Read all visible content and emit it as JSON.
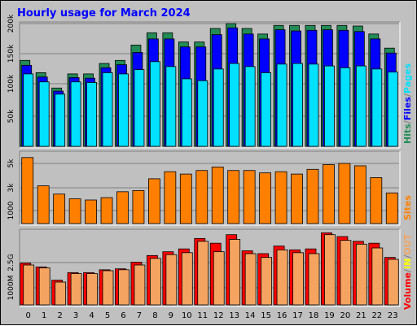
{
  "title": "Hourly usage for March 2024",
  "colors": {
    "background": "#c0c0c0",
    "plot_bg": "#c0c0c0",
    "hits": "#228b56",
    "files": "#0000ff",
    "pages": "#00e0ff",
    "sites": "#ff8000",
    "volume": "#ff0000",
    "in": "#ffff00",
    "out": "#f4a460",
    "title": "#0000ff"
  },
  "chart_data": [
    {
      "type": "bar",
      "title": "Hourly usage for March 2024",
      "categories": [
        "0",
        "1",
        "2",
        "3",
        "4",
        "5",
        "6",
        "7",
        "8",
        "9",
        "10",
        "11",
        "12",
        "13",
        "14",
        "15",
        "16",
        "17",
        "18",
        "19",
        "20",
        "21",
        "22",
        "23"
      ],
      "ylim": [
        0,
        200000
      ],
      "y_ticks": [
        "50k",
        "100k",
        "150k",
        "200k"
      ],
      "legend_vertical": [
        {
          "text": "Hits",
          "color": "#228b56"
        },
        {
          "text": "/",
          "color": "#808080"
        },
        {
          "text": "Files",
          "color": "#0000ff"
        },
        {
          "text": "/",
          "color": "#808080"
        },
        {
          "text": "Pages",
          "color": "#00e0ff"
        }
      ],
      "series": [
        {
          "name": "Hits",
          "values": [
            140000,
            120000,
            95000,
            118000,
            118000,
            135000,
            140000,
            165000,
            185000,
            185000,
            170000,
            170000,
            192000,
            200000,
            192000,
            183000,
            197000,
            197000,
            197000,
            197000,
            197000,
            196000,
            183000,
            160000
          ]
        },
        {
          "name": "Files",
          "values": [
            132000,
            113000,
            90000,
            112000,
            111000,
            128000,
            133000,
            153000,
            175000,
            175000,
            162000,
            162000,
            182000,
            193000,
            183000,
            175000,
            190000,
            188000,
            189000,
            190000,
            189000,
            187000,
            175000,
            152000
          ]
        },
        {
          "name": "Pages",
          "values": [
            118000,
            105000,
            85000,
            105000,
            104000,
            120000,
            118000,
            125000,
            138000,
            130000,
            110000,
            107000,
            126000,
            135000,
            130000,
            120000,
            134000,
            135000,
            134000,
            131000,
            128000,
            131000,
            126000,
            121000
          ]
        }
      ]
    },
    {
      "type": "bar",
      "categories": [
        "0",
        "1",
        "2",
        "3",
        "4",
        "5",
        "6",
        "7",
        "8",
        "9",
        "10",
        "11",
        "12",
        "13",
        "14",
        "15",
        "16",
        "17",
        "18",
        "19",
        "20",
        "21",
        "22",
        "23"
      ],
      "ylim": [
        0,
        6000
      ],
      "y_ticks": [
        "1000",
        "3k",
        "5k"
      ],
      "legend_vertical": [
        {
          "text": "Sites",
          "color": "#ff8000"
        }
      ],
      "series": [
        {
          "name": "Sites",
          "values": [
            5600,
            3200,
            2500,
            2100,
            2000,
            2200,
            2700,
            2800,
            3800,
            4400,
            4200,
            4500,
            4800,
            4500,
            4500,
            4300,
            4400,
            4200,
            4600,
            5000,
            5100,
            4900,
            3900,
            2600
          ]
        }
      ]
    },
    {
      "type": "bar",
      "categories": [
        "0",
        "1",
        "2",
        "3",
        "4",
        "5",
        "6",
        "7",
        "8",
        "9",
        "10",
        "11",
        "12",
        "13",
        "14",
        "15",
        "16",
        "17",
        "18",
        "19",
        "20",
        "21",
        "22",
        "23"
      ],
      "ylim": [
        0,
        3900
      ],
      "y_ticks": [
        "1000M",
        "2.5G"
      ],
      "legend_vertical": [
        {
          "text": "Volume",
          "color": "#ff0000"
        },
        {
          "text": "/",
          "color": "#808080"
        },
        {
          "text": "IN",
          "color": "#ffff00"
        },
        {
          "text": "/",
          "color": "#808080"
        },
        {
          "text": "OUT",
          "color": "#f4a460"
        }
      ],
      "series": [
        {
          "name": "Volume",
          "values": [
            2200,
            2000,
            1300,
            1700,
            1700,
            1850,
            1900,
            2250,
            2600,
            2800,
            2950,
            3500,
            3250,
            3700,
            2850,
            2700,
            3100,
            2900,
            2950,
            3800,
            3600,
            3350,
            3250,
            2500
          ]
        },
        {
          "name": "OUT",
          "values": [
            2100,
            1950,
            1200,
            1650,
            1650,
            1800,
            1850,
            2100,
            2450,
            2650,
            2750,
            3350,
            2800,
            3450,
            2700,
            2500,
            2900,
            2750,
            2700,
            3700,
            3400,
            3200,
            3000,
            2400
          ]
        }
      ],
      "x_tick_labels": [
        "0",
        "1",
        "2",
        "3",
        "4",
        "5",
        "6",
        "7",
        "8",
        "9",
        "10",
        "11",
        "12",
        "13",
        "14",
        "15",
        "16",
        "17",
        "18",
        "19",
        "20",
        "21",
        "22",
        "23"
      ]
    }
  ]
}
